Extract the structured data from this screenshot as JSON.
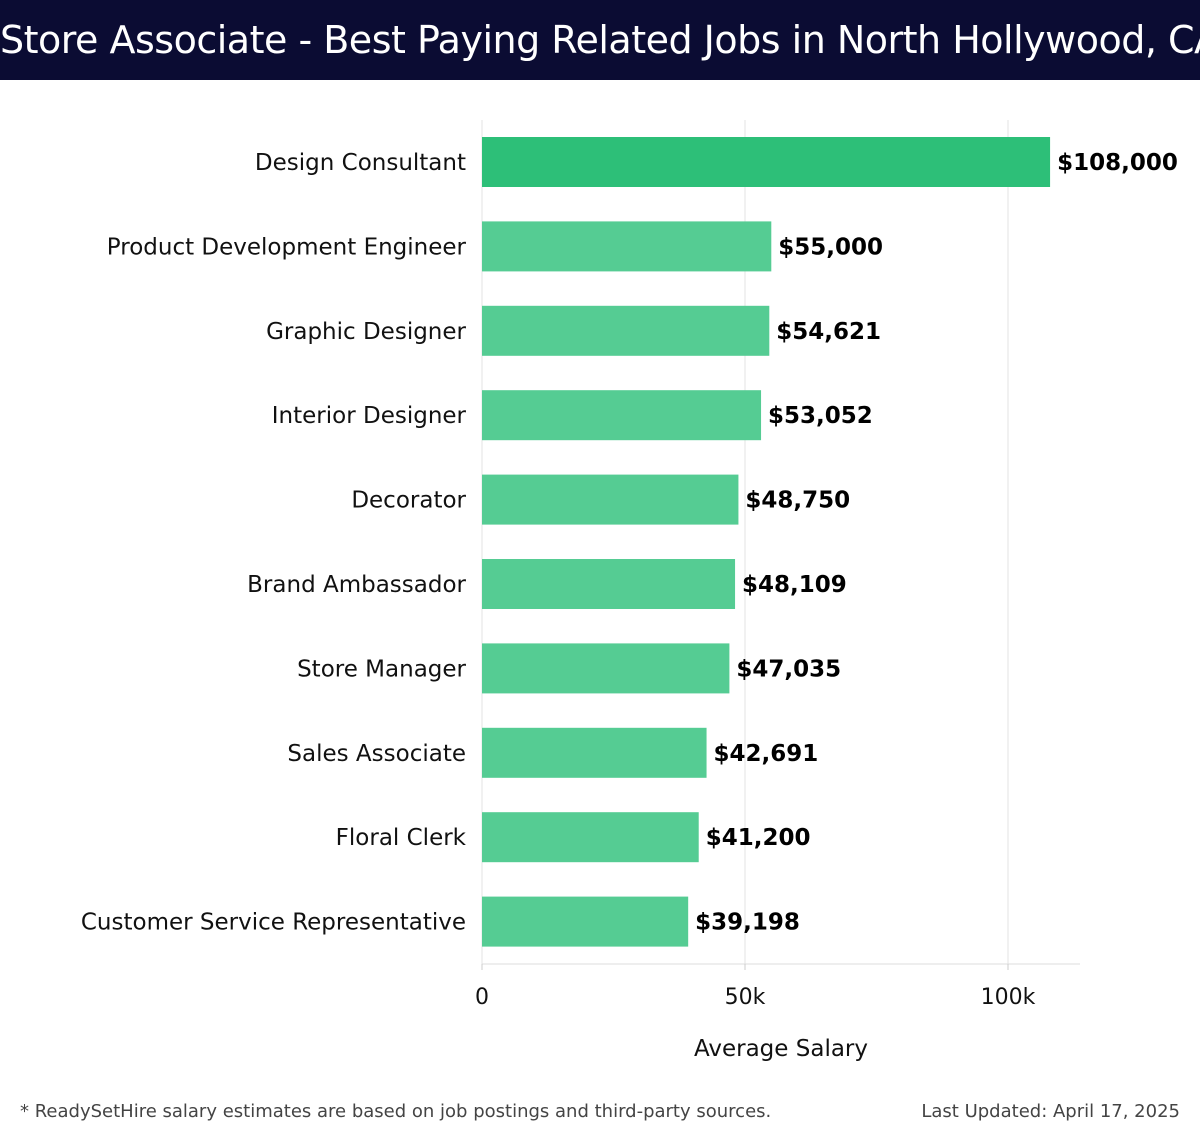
{
  "header": {
    "title": "Store Associate - Best Paying Related Jobs in North Hollywood, CA"
  },
  "footer": {
    "note": "* ReadySetHire salary estimates are based on job postings and third-party sources.",
    "updated": "Last Updated: April 17, 2025"
  },
  "colors": {
    "header_bg": "#0b0c33",
    "top_bar": "#2dbf78",
    "bar": "#55cc93",
    "grid": "#e3e3e3"
  },
  "chart_data": {
    "type": "bar",
    "orientation": "horizontal",
    "categories": [
      "Design Consultant",
      "Product Development Engineer",
      "Graphic Designer",
      "Interior Designer",
      "Decorator",
      "Brand Ambassador",
      "Store Manager",
      "Sales Associate",
      "Floral Clerk",
      "Customer Service Representative"
    ],
    "values": [
      108000,
      55000,
      54621,
      53052,
      48750,
      48109,
      47035,
      42691,
      41200,
      39198
    ],
    "value_labels": [
      "$108,000",
      "$55,000",
      "$54,621",
      "$53,052",
      "$48,750",
      "$48,109",
      "$47,035",
      "$42,691",
      "$41,200",
      "$39,198"
    ],
    "xlabel": "Average Salary",
    "ylabel": "",
    "xlim": [
      0,
      113500
    ],
    "xticks": [
      0,
      50000,
      100000
    ],
    "xtick_labels": [
      "0",
      "50k",
      "100k"
    ],
    "grid": true,
    "legend": "none"
  }
}
